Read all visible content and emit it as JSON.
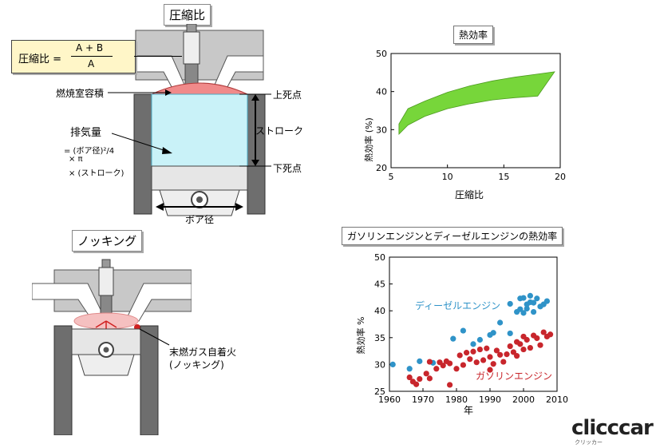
{
  "compression_section": {
    "title": "圧縮比",
    "formula_label": "圧縮比 =",
    "formula_numerator": "A + B",
    "formula_denominator": "A",
    "combustion_chamber_label": "燃焼室容積",
    "tdc_label": "上死点",
    "bdc_label": "下死点",
    "stroke_label": "ストローク",
    "displacement_label": "排気量",
    "displacement_formula_1": "= (ボア径)²/4",
    "displacement_formula_2": "× π",
    "displacement_formula_3": "× (ストローク)",
    "bore_label": "ボア径"
  },
  "knocking_section": {
    "title": "ノッキング",
    "note_line1": "末燃ガス自着火",
    "note_line2": "(ノッキング)"
  },
  "colors": {
    "engine_gray": "#c8c8c8",
    "wall_gray": "#6e6e6e",
    "chamber_red": "#f08a8a",
    "cylinder_cyan": "#c9f2f8",
    "band_green": "#77d63a",
    "diesel_blue": "#2f93c8",
    "gasoline_red": "#c8262c",
    "formula_yellow": "#fff6c8"
  },
  "chart_data": [
    {
      "type": "area",
      "title": "熱効率",
      "xlabel": "圧縮比",
      "ylabel": "熱効率 (%)",
      "xlim": [
        5,
        20
      ],
      "ylim": [
        20,
        50
      ],
      "xticks": [
        "5",
        "10",
        "15",
        "20"
      ],
      "yticks": [
        "20",
        "30",
        "40",
        "50"
      ],
      "band": {
        "x": [
          5.7,
          6.5,
          8,
          10,
          12,
          14,
          16,
          18,
          19.5
        ],
        "upper": [
          31.5,
          35.5,
          37.5,
          39.8,
          41.5,
          42.8,
          43.8,
          44.6,
          45.2
        ],
        "lower": [
          28.8,
          31.2,
          33.5,
          35.5,
          36.8,
          37.8,
          38.4,
          38.8,
          45.2
        ]
      }
    },
    {
      "type": "scatter",
      "title": "ガソリンエンジンとディーゼルエンジンの熱効率",
      "xlabel": "年",
      "ylabel": "熱効率 %",
      "xlim": [
        1960,
        2010
      ],
      "ylim": [
        25,
        50
      ],
      "xticks": [
        "1960",
        "1970",
        "1980",
        "1990",
        "2000",
        "2010"
      ],
      "yticks": [
        "25",
        "30",
        "35",
        "40",
        "45",
        "50"
      ],
      "series": [
        {
          "name": "ディーゼルエンジン",
          "color": "#2f93c8",
          "points": [
            [
              1961,
              30.0
            ],
            [
              1966,
              29.2
            ],
            [
              1969,
              30.6
            ],
            [
              1973,
              30.3
            ],
            [
              1979,
              34.8
            ],
            [
              1982,
              36.3
            ],
            [
              1985,
              33.8
            ],
            [
              1987,
              34.6
            ],
            [
              1990,
              35.5
            ],
            [
              1991,
              35.9
            ],
            [
              1993,
              37.8
            ],
            [
              1996,
              35.8
            ],
            [
              1996,
              41.3
            ],
            [
              1998,
              39.8
            ],
            [
              1999,
              40.3
            ],
            [
              1999,
              42.3
            ],
            [
              2000,
              42.4
            ],
            [
              2000,
              39.6
            ],
            [
              2001,
              41.2
            ],
            [
              2001,
              40.4
            ],
            [
              2002,
              42.8
            ],
            [
              2002,
              41.6
            ],
            [
              2003,
              39.8
            ],
            [
              2003,
              41.5
            ],
            [
              2004,
              42.3
            ],
            [
              2005,
              40.8
            ],
            [
              2006,
              41.2
            ],
            [
              2007,
              41.8
            ]
          ]
        },
        {
          "name": "ガソリンエンジン",
          "color": "#c8262c",
          "points": [
            [
              1966,
              27.6
            ],
            [
              1967,
              26.8
            ],
            [
              1968,
              26.3
            ],
            [
              1969,
              27.3
            ],
            [
              1971,
              28.3
            ],
            [
              1972,
              30.5
            ],
            [
              1972,
              27.4
            ],
            [
              1974,
              29.2
            ],
            [
              1975,
              30.4
            ],
            [
              1976,
              29.8
            ],
            [
              1977,
              30.6
            ],
            [
              1978,
              30.2
            ],
            [
              1978,
              26.2
            ],
            [
              1980,
              29.2
            ],
            [
              1981,
              31.7
            ],
            [
              1982,
              29.9
            ],
            [
              1983,
              32.2
            ],
            [
              1984,
              31.0
            ],
            [
              1985,
              32.4
            ],
            [
              1986,
              30.4
            ],
            [
              1987,
              32.8
            ],
            [
              1988,
              30.8
            ],
            [
              1989,
              33.0
            ],
            [
              1990,
              31.4
            ],
            [
              1990,
              29.0
            ],
            [
              1991,
              30.1
            ],
            [
              1992,
              32.6
            ],
            [
              1993,
              31.8
            ],
            [
              1994,
              30.5
            ],
            [
              1995,
              31.9
            ],
            [
              1996,
              33.4
            ],
            [
              1997,
              32.3
            ],
            [
              1998,
              34.2
            ],
            [
              1998,
              31.6
            ],
            [
              1999,
              33.8
            ],
            [
              2000,
              35.2
            ],
            [
              2000,
              32.8
            ],
            [
              2001,
              34.6
            ],
            [
              2002,
              33.1
            ],
            [
              2003,
              35.4
            ],
            [
              2004,
              34.9
            ],
            [
              2005,
              33.6
            ],
            [
              2006,
              36.0
            ],
            [
              2007,
              35.2
            ],
            [
              2008,
              35.6
            ]
          ]
        }
      ]
    }
  ],
  "watermark": "clicccar",
  "watermark_sub": "クリッカー"
}
